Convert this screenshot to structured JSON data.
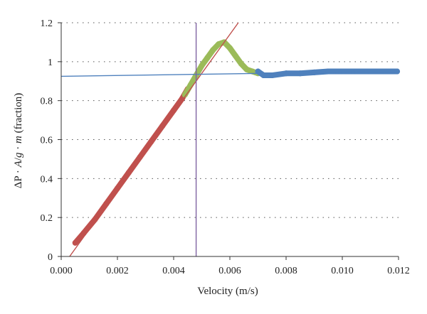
{
  "chart_data": {
    "type": "scatter",
    "xlabel": "Velocity (m/s)",
    "ylabel_parts": [
      "ΔP",
      " · ",
      "A",
      "/",
      "g",
      " · ",
      "m",
      " (fraction)"
    ],
    "xlim": [
      0,
      0.012
    ],
    "ylim": [
      0,
      1.2
    ],
    "x_ticks": [
      "0.000",
      "0.002",
      "0.004",
      "0.006",
      "0.008",
      "0.010",
      "0.012"
    ],
    "y_ticks": [
      "0",
      "0.2",
      "0.4",
      "0.6",
      "0.8",
      "1",
      "1.2"
    ],
    "grid": "horizontal dotted",
    "colors": {
      "red": "#c0504d",
      "green": "#9bbb59",
      "blue": "#4f81bd",
      "purple": "#8064a2",
      "axis": "#333333",
      "grid": "#555555"
    },
    "series": [
      {
        "color": "red",
        "points": [
          [
            0.0005,
            0.07
          ],
          [
            0.0008,
            0.12
          ],
          [
            0.0012,
            0.19
          ],
          [
            0.0016,
            0.27
          ],
          [
            0.002,
            0.35
          ],
          [
            0.0024,
            0.43
          ],
          [
            0.0028,
            0.51
          ],
          [
            0.0032,
            0.59
          ],
          [
            0.0036,
            0.67
          ],
          [
            0.004,
            0.75
          ],
          [
            0.0043,
            0.81
          ],
          [
            0.0045,
            0.86
          ]
        ]
      },
      {
        "color": "green",
        "points": [
          [
            0.0044,
            0.83
          ],
          [
            0.0046,
            0.88
          ],
          [
            0.0048,
            0.93
          ],
          [
            0.005,
            0.98
          ],
          [
            0.0052,
            1.02
          ],
          [
            0.0054,
            1.06
          ],
          [
            0.0056,
            1.09
          ],
          [
            0.0058,
            1.1
          ],
          [
            0.006,
            1.07
          ],
          [
            0.0062,
            1.03
          ],
          [
            0.0064,
            0.99
          ],
          [
            0.0066,
            0.96
          ],
          [
            0.0068,
            0.95
          ],
          [
            0.007,
            0.94
          ]
        ]
      },
      {
        "color": "blue",
        "points": [
          [
            0.007,
            0.95
          ],
          [
            0.0072,
            0.93
          ],
          [
            0.0075,
            0.93
          ],
          [
            0.008,
            0.94
          ],
          [
            0.0085,
            0.94
          ],
          [
            0.009,
            0.945
          ],
          [
            0.0095,
            0.95
          ],
          [
            0.01,
            0.95
          ],
          [
            0.0105,
            0.95
          ],
          [
            0.011,
            0.95
          ],
          [
            0.0115,
            0.95
          ],
          [
            0.01195,
            0.95
          ]
        ]
      }
    ],
    "lines": [
      {
        "color": "red",
        "from": [
          0.0003,
          0.0
        ],
        "to": [
          0.0063,
          1.2
        ]
      },
      {
        "color": "blue",
        "from": [
          0.0,
          0.925
        ],
        "to": [
          0.0119,
          0.95
        ]
      },
      {
        "color": "purple",
        "from": [
          0.0048,
          0.0
        ],
        "to": [
          0.0048,
          1.2
        ]
      }
    ]
  }
}
